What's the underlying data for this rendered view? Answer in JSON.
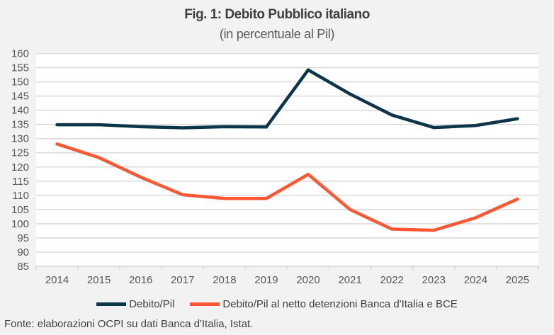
{
  "chart_data": {
    "type": "line",
    "title": "Fig. 1: Debito Pubblico italiano",
    "subtitle": "(in percentuale al Pil)",
    "categories": [
      "2014",
      "2015",
      "2016",
      "2017",
      "2018",
      "2019",
      "2020",
      "2021",
      "2022",
      "2023",
      "2024",
      "2025"
    ],
    "series": [
      {
        "name": "Debito/Pil",
        "color": "#0b3548",
        "values": [
          134.9,
          134.9,
          134.2,
          133.8,
          134.2,
          134.1,
          154.2,
          145.7,
          138.3,
          133.9,
          134.6,
          137.0
        ]
      },
      {
        "name": "Debito/Pil al netto detenzioni Banca d'Italia e BCE",
        "color": "#ff5733",
        "values": [
          128.1,
          123.3,
          116.4,
          110.2,
          108.9,
          108.9,
          117.4,
          105.0,
          98.1,
          97.7,
          102.1,
          108.7
        ]
      }
    ],
    "ylim": [
      85,
      160
    ],
    "yticks": [
      160,
      155,
      150,
      145,
      140,
      135,
      130,
      125,
      120,
      115,
      110,
      105,
      100,
      95,
      90,
      85
    ],
    "grid": true,
    "legend_position": "bottom",
    "source": "Fonte: elaborazioni OCPI su dati Banca d'Italia, Istat."
  }
}
